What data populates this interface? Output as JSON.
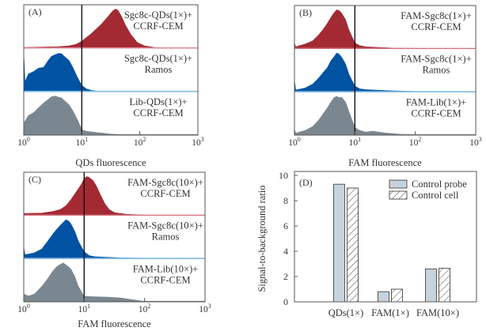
{
  "colors": {
    "red": "#a32a33",
    "red_tail": "#e58a96",
    "blue": "#0052a3",
    "blue_tail": "#7fc3ea",
    "gray": "#7b8790",
    "bar_fill": "#c6d3dd",
    "axis": "#555555",
    "gate": "#111111"
  },
  "chart_data": [
    {
      "id": "A",
      "type": "area",
      "panel_label": "(A)",
      "xlabel": "QDs fluorescence",
      "xscale": "log",
      "xlim": [
        1,
        1000
      ],
      "xticks": [
        1,
        10,
        100,
        1000
      ],
      "xtick_labels": [
        [
          "10",
          "0"
        ],
        [
          "10",
          "1"
        ],
        [
          "10",
          "2"
        ],
        [
          "10",
          "3"
        ]
      ],
      "gate_x": 10,
      "tracks": [
        {
          "color": "red",
          "label": [
            "Sgc8c-QDs(1×)+",
            "CCRF-CEM"
          ],
          "x": [
            1,
            2,
            4,
            6,
            8,
            10,
            14,
            18,
            22,
            28,
            34,
            38,
            42,
            48,
            56,
            70,
            90,
            120,
            180,
            300,
            1000
          ],
          "y": [
            0.02,
            0.03,
            0.04,
            0.06,
            0.1,
            0.18,
            0.35,
            0.5,
            0.62,
            0.8,
            0.95,
            1.0,
            0.97,
            0.82,
            0.6,
            0.35,
            0.15,
            0.06,
            0.02,
            0.01,
            0.0
          ]
        },
        {
          "color": "blue",
          "label": [
            "Sgc8c-QDs(1×)+",
            "Ramos"
          ],
          "x": [
            1,
            1.05,
            1.2,
            1.5,
            1.8,
            2.2,
            2.6,
            3.0,
            3.5,
            4.0,
            4.5,
            5.0,
            6.0,
            7.0,
            8.5,
            10,
            12,
            15,
            20,
            40,
            1000
          ],
          "y": [
            1.0,
            0.25,
            0.45,
            0.52,
            0.6,
            0.62,
            0.78,
            0.9,
            0.95,
            0.98,
            0.97,
            0.9,
            0.8,
            0.62,
            0.35,
            0.16,
            0.07,
            0.03,
            0.01,
            0.005,
            0.0
          ]
        },
        {
          "color": "gray",
          "label": [
            "Lib-QDs(1×)+",
            "CCRF-CEM"
          ],
          "x": [
            1,
            1.2,
            1.5,
            1.8,
            2.2,
            2.6,
            3.0,
            3.5,
            4.0,
            4.5,
            5.0,
            6.0,
            7.0,
            8.5,
            10,
            12,
            15,
            20,
            30,
            50,
            1000
          ],
          "y": [
            0.3,
            0.5,
            0.58,
            0.7,
            0.82,
            0.9,
            0.98,
            1.0,
            0.97,
            0.95,
            0.88,
            0.78,
            0.62,
            0.38,
            0.14,
            0.1,
            0.08,
            0.06,
            0.03,
            0.01,
            0.0
          ]
        }
      ]
    },
    {
      "id": "B",
      "type": "area",
      "panel_label": "(B)",
      "xlabel": "FAM fluorescence",
      "xscale": "log",
      "xlim": [
        1,
        1000
      ],
      "xticks": [
        1,
        10,
        100,
        1000
      ],
      "xtick_labels": [
        [
          "10",
          "0"
        ],
        [
          "10",
          "1"
        ],
        [
          "10",
          "2"
        ],
        [
          "10",
          "3"
        ]
      ],
      "gate_x": 10,
      "tracks": [
        {
          "color": "red",
          "label": [
            "FAM-Sgc8c(1×)+",
            "CCRF-CEM"
          ],
          "x": [
            1,
            1.05,
            1.5,
            2.0,
            2.5,
            3.0,
            3.5,
            4.0,
            4.5,
            5.0,
            5.5,
            6.0,
            7.0,
            8.0,
            10,
            12,
            15,
            20,
            40,
            100,
            1000
          ],
          "y": [
            0.15,
            0.05,
            0.12,
            0.2,
            0.35,
            0.5,
            0.65,
            0.8,
            0.92,
            1.0,
            0.98,
            0.92,
            0.75,
            0.48,
            0.15,
            0.08,
            0.05,
            0.04,
            0.02,
            0.01,
            0.0
          ]
        },
        {
          "color": "blue",
          "label": [
            "FAM-Sgc8c(1×)+",
            "Ramos"
          ],
          "x": [
            1,
            1.05,
            1.5,
            2.0,
            2.5,
            3.0,
            3.5,
            4.0,
            4.5,
            5.0,
            5.5,
            6.0,
            7.0,
            8.0,
            10,
            12,
            15,
            20,
            40,
            100,
            1000
          ],
          "y": [
            0.3,
            0.05,
            0.1,
            0.2,
            0.35,
            0.5,
            0.62,
            0.8,
            0.9,
            1.0,
            0.97,
            0.9,
            0.72,
            0.45,
            0.15,
            0.08,
            0.06,
            0.05,
            0.03,
            0.01,
            0.0
          ]
        },
        {
          "color": "gray",
          "label": [
            "FAM-Lib(1×)+",
            "CCRF-CEM"
          ],
          "x": [
            1,
            1.05,
            1.5,
            2.0,
            2.5,
            3.0,
            3.5,
            4.0,
            4.5,
            5.0,
            5.5,
            6.0,
            7.0,
            8.0,
            10,
            12,
            15,
            20,
            30,
            60,
            1000
          ],
          "y": [
            0.15,
            0.05,
            0.12,
            0.22,
            0.38,
            0.55,
            0.7,
            0.85,
            0.96,
            1.0,
            0.96,
            0.98,
            0.85,
            0.6,
            0.2,
            0.12,
            0.08,
            0.1,
            0.06,
            0.02,
            0.0
          ]
        }
      ]
    },
    {
      "id": "C",
      "type": "area",
      "panel_label": "(C)",
      "xlabel": "FAM fluorescence",
      "xscale": "log",
      "xlim": [
        1,
        1000
      ],
      "xticks": [
        1,
        10,
        100,
        1000
      ],
      "xtick_labels": [
        [
          "10",
          "0"
        ],
        [
          "10",
          "1"
        ],
        [
          "10",
          "2"
        ],
        [
          "10",
          "3"
        ]
      ],
      "gate_x": 10,
      "tracks": [
        {
          "color": "red",
          "label": [
            "FAM-Sgc8c(10×)+",
            "CCRF-CEM"
          ],
          "x": [
            1,
            2,
            3,
            4,
            5,
            6,
            7,
            8,
            9,
            10,
            11,
            12,
            14,
            16,
            19,
            22,
            26,
            32,
            50,
            100,
            1000
          ],
          "y": [
            0.05,
            0.06,
            0.1,
            0.15,
            0.25,
            0.4,
            0.55,
            0.68,
            0.8,
            0.95,
            1.0,
            0.98,
            0.9,
            0.75,
            0.5,
            0.3,
            0.15,
            0.07,
            0.03,
            0.01,
            0.0
          ]
        },
        {
          "color": "blue",
          "label": [
            "FAM-Sgc8c(10×)+",
            "Ramos"
          ],
          "x": [
            1,
            1.05,
            1.5,
            2.0,
            2.5,
            3.0,
            3.5,
            4.0,
            4.5,
            5.0,
            5.5,
            6.0,
            7.0,
            8.0,
            10,
            12,
            15,
            20,
            40,
            100,
            1000
          ],
          "y": [
            0.3,
            0.1,
            0.15,
            0.25,
            0.45,
            0.62,
            0.75,
            0.85,
            0.93,
            1.0,
            0.97,
            0.9,
            0.7,
            0.45,
            0.18,
            0.08,
            0.05,
            0.04,
            0.02,
            0.01,
            0.0
          ]
        },
        {
          "color": "gray",
          "label": [
            "FAM-Lib(10×)+",
            "CCRF-CEM"
          ],
          "x": [
            1,
            1.2,
            1.5,
            2.0,
            2.5,
            3.0,
            3.5,
            4.0,
            4.5,
            5.0,
            5.5,
            6.0,
            7.0,
            8.0,
            9.5,
            10,
            15,
            25,
            40,
            100,
            1000
          ],
          "y": [
            0.2,
            0.15,
            0.2,
            0.4,
            0.6,
            0.78,
            0.9,
            0.96,
            1.0,
            0.95,
            0.9,
            0.85,
            0.65,
            0.4,
            0.2,
            0.14,
            0.13,
            0.12,
            0.1,
            0.01,
            0.0
          ]
        }
      ]
    },
    {
      "id": "D",
      "type": "bar",
      "panel_label": "(D)",
      "title": "",
      "xlabel": "",
      "ylabel": "Signal-to-background ratio",
      "ylim": [
        0,
        10
      ],
      "yticks": [
        0,
        2,
        4,
        6,
        8,
        10
      ],
      "categories": [
        "QDs(1×)",
        "FAM(1×)",
        "FAM(10×)"
      ],
      "series": [
        {
          "name": "Control probe",
          "pattern": "solid",
          "values": [
            9.3,
            0.8,
            2.6
          ]
        },
        {
          "name": "Control cell",
          "pattern": "hatched",
          "values": [
            9.0,
            1.0,
            2.65
          ]
        }
      ],
      "legend_position": "top-right"
    }
  ]
}
